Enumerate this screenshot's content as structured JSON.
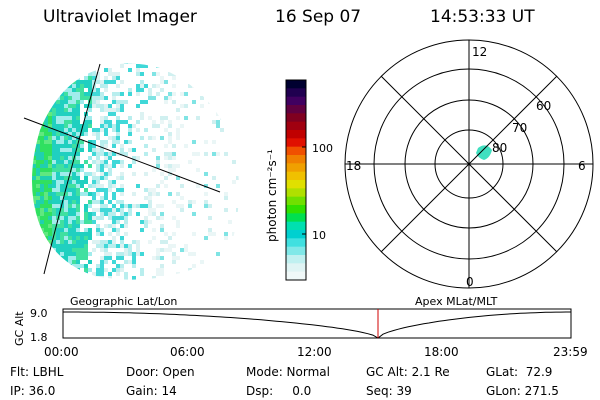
{
  "header": {
    "title": "Ultraviolet Imager",
    "date": "16 Sep 07",
    "time": "14:53:33 UT"
  },
  "colorbar": {
    "label": "photon cm⁻²s⁻¹",
    "ticks": [
      "100",
      "10"
    ],
    "colors": [
      "#000030",
      "#200050",
      "#400060",
      "#600040",
      "#800020",
      "#a00010",
      "#c00000",
      "#e01000",
      "#f05000",
      "#f08000",
      "#f0a000",
      "#f0c000",
      "#e0e000",
      "#b0e000",
      "#70e000",
      "#30e000",
      "#00e050",
      "#00e0b0",
      "#00d0d0",
      "#40e0e0",
      "#80e8e8",
      "#c0f0f0",
      "#e0f4f4",
      "#f0f8f8"
    ]
  },
  "polar": {
    "hours": [
      "12",
      "18",
      "6",
      "0"
    ],
    "latitudes": [
      "60",
      "70",
      "80"
    ]
  },
  "timeline": {
    "left_label": "Geographic Lat/Lon",
    "right_label": "Apex MLat/MLT",
    "axis_name": "GC Alt",
    "y_max": "9.0",
    "y_min": "1.8",
    "ticks": [
      "00:00",
      "06:00",
      "12:00",
      "18:00",
      "23:59"
    ],
    "current_fraction": 0.62
  },
  "info": {
    "row1": [
      {
        "name": "filter",
        "text": "Flt: LBHL"
      },
      {
        "name": "door",
        "text": "Door: Open"
      },
      {
        "name": "mode",
        "text": "Mode: Normal"
      },
      {
        "name": "gc-alt",
        "text": "GC Alt: 2.1 Re"
      },
      {
        "name": "glat",
        "text": "GLat:  72.9"
      }
    ],
    "row2": [
      {
        "name": "ip",
        "text": "IP: 36.0"
      },
      {
        "name": "gain",
        "text": "Gain: 14"
      },
      {
        "name": "dsp",
        "text": "Dsp:     0.0"
      },
      {
        "name": "seq",
        "text": "Seq: 39"
      },
      {
        "name": "glon",
        "text": "GLon: 271.5"
      }
    ]
  }
}
